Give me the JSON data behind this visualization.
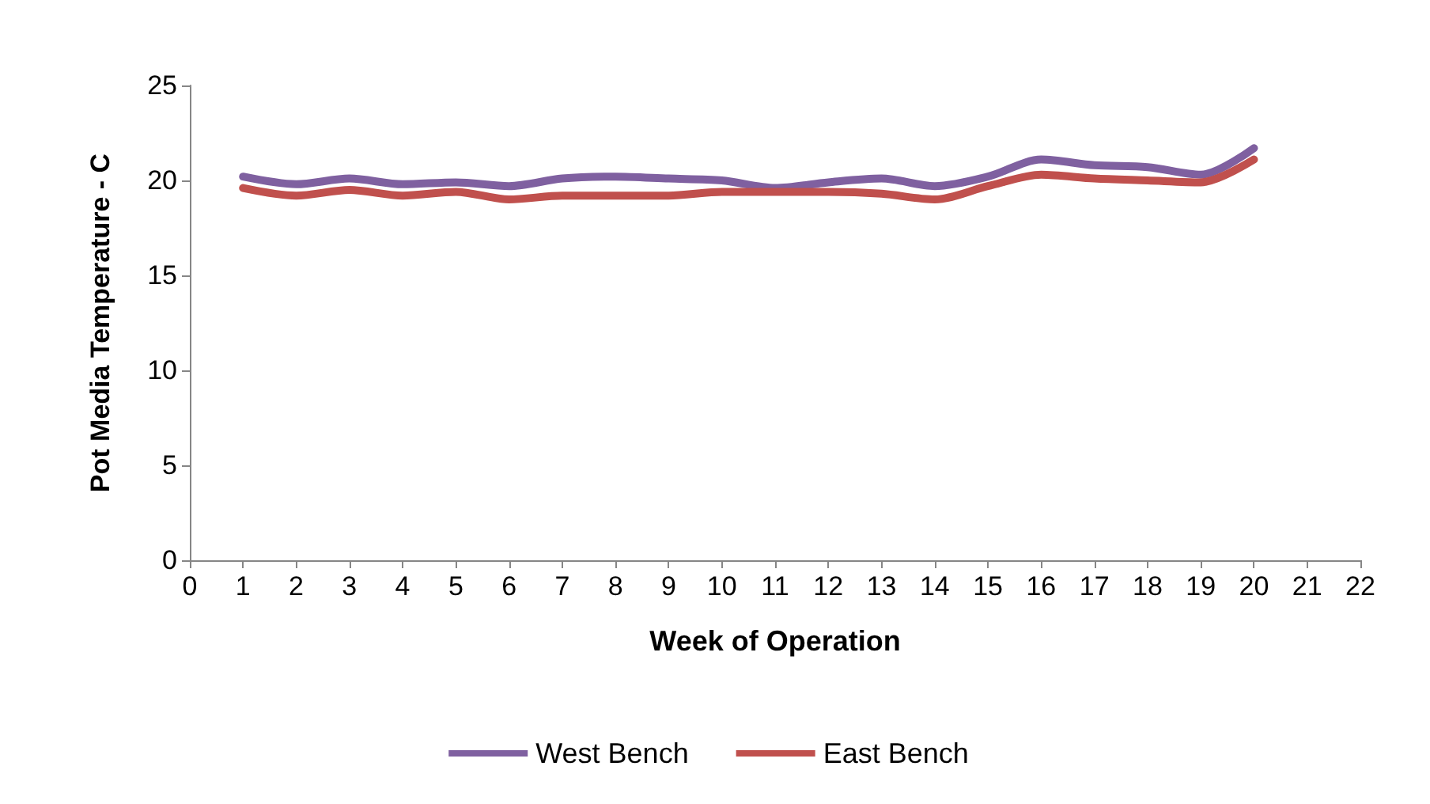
{
  "chart_data": {
    "type": "line",
    "xlabel": "Week of Operation",
    "ylabel": "Pot Media Temperature - C",
    "x": [
      1,
      2,
      3,
      4,
      5,
      6,
      7,
      8,
      9,
      10,
      11,
      12,
      13,
      14,
      15,
      16,
      17,
      18,
      19,
      20
    ],
    "series": [
      {
        "name": "West Bench",
        "color": "#7f60a0",
        "values": [
          20.2,
          19.8,
          20.1,
          19.8,
          19.9,
          19.7,
          20.1,
          20.2,
          20.1,
          20.0,
          19.6,
          19.9,
          20.1,
          19.7,
          20.2,
          21.1,
          20.8,
          20.7,
          20.3,
          21.7
        ]
      },
      {
        "name": "East Bench",
        "color": "#c0504d",
        "values": [
          19.6,
          19.2,
          19.5,
          19.2,
          19.4,
          19.0,
          19.2,
          19.2,
          19.2,
          19.4,
          19.4,
          19.4,
          19.3,
          19.0,
          19.7,
          20.3,
          20.1,
          20.0,
          19.9,
          21.1
        ]
      }
    ],
    "xlim": [
      0,
      22
    ],
    "xticks": [
      0,
      1,
      2,
      3,
      4,
      5,
      6,
      7,
      8,
      9,
      10,
      11,
      12,
      13,
      14,
      15,
      16,
      17,
      18,
      19,
      20,
      21,
      22
    ],
    "ylim": [
      0,
      25
    ],
    "yticks": [
      0,
      5,
      10,
      15,
      20,
      25
    ],
    "grid": false,
    "legend": "bottom",
    "marker": "none",
    "line_style": "solid"
  }
}
